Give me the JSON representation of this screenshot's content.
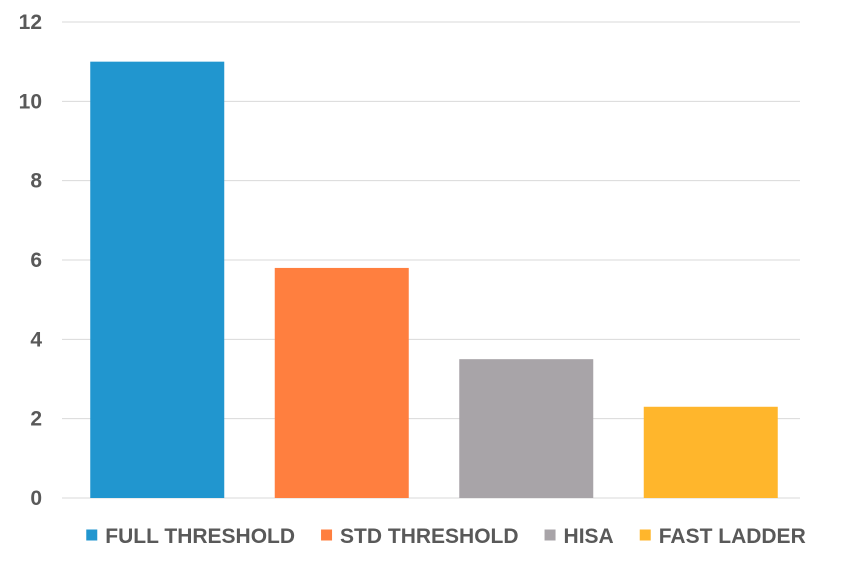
{
  "chart_data": {
    "type": "bar",
    "title": "",
    "xlabel": "",
    "ylabel": "",
    "categories": [
      "FULL THRESHOLD",
      "STD THRESHOLD",
      "HISA",
      "FAST LADDER"
    ],
    "values": [
      11,
      5.8,
      3.5,
      2.3
    ],
    "colors": [
      "#2196CF",
      "#FF7F3F",
      "#A8A4A8",
      "#FFB62C"
    ],
    "ylim": [
      0,
      12
    ],
    "yticks": [
      0,
      2,
      4,
      6,
      8,
      10,
      12
    ],
    "grid": true,
    "legend": {
      "position": "bottom",
      "entries": [
        "FULL THRESHOLD",
        "STD THRESHOLD",
        "HISA",
        "FAST LADDER"
      ]
    },
    "gridline_color": "#D9D9D9",
    "text_color": "#595959"
  }
}
